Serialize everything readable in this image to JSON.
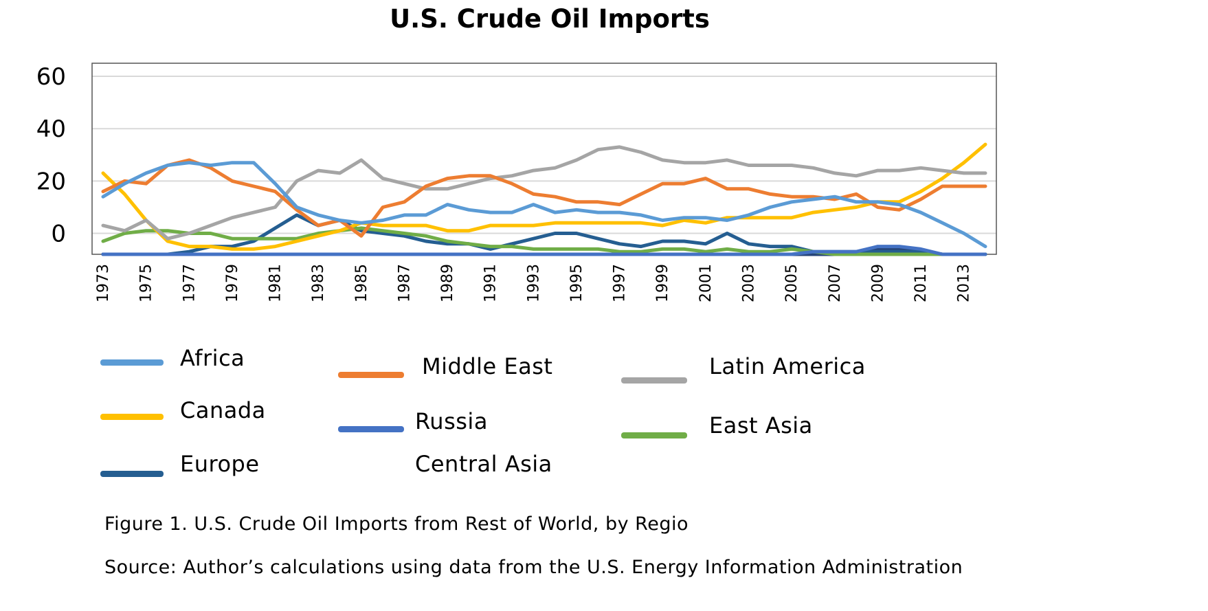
{
  "chart_data": {
    "type": "line",
    "title": "U.S. Crude Oil Imports",
    "xlabel": "",
    "ylabel": "",
    "ylim": [
      -8,
      65
    ],
    "yticks": [
      0,
      20,
      40,
      60
    ],
    "x": [
      1973,
      1974,
      1975,
      1976,
      1977,
      1978,
      1979,
      1980,
      1981,
      1982,
      1983,
      1984,
      1985,
      1986,
      1987,
      1988,
      1989,
      1990,
      1991,
      1992,
      1993,
      1994,
      1995,
      1996,
      1997,
      1998,
      1999,
      2000,
      2001,
      2002,
      2003,
      2004,
      2005,
      2006,
      2007,
      2008,
      2009,
      2010,
      2011,
      2012,
      2013,
      2014
    ],
    "xtick_labels": [
      "1973",
      "1975",
      "1977",
      "1979",
      "1981",
      "1983",
      "1985",
      "1987",
      "1989",
      "1991",
      "1993",
      "1995",
      "1997",
      "1999",
      "2001",
      "2003",
      "2005",
      "2007",
      "2009",
      "2011",
      "2013"
    ],
    "grid": true,
    "legend_position": "bottom",
    "series": [
      {
        "name": "Africa",
        "color": "#5B9BD5",
        "values": [
          14,
          19,
          23,
          26,
          27,
          26,
          27,
          27,
          19,
          10,
          7,
          5,
          4,
          5,
          7,
          7,
          11,
          9,
          8,
          8,
          11,
          8,
          9,
          8,
          8,
          7,
          5,
          6,
          6,
          5,
          7,
          10,
          12,
          13,
          14,
          12,
          12,
          11,
          8,
          4,
          0,
          -5
        ]
      },
      {
        "name": "Middle East",
        "color": "#ED7D31",
        "values": [
          16,
          20,
          19,
          26,
          28,
          25,
          20,
          18,
          16,
          9,
          3,
          5,
          -1,
          10,
          12,
          18,
          21,
          22,
          22,
          19,
          15,
          14,
          12,
          12,
          11,
          15,
          19,
          19,
          21,
          17,
          17,
          15,
          14,
          14,
          13,
          15,
          10,
          9,
          13,
          18,
          18,
          18
        ]
      },
      {
        "name": "Latin America",
        "color": "#A5A5A5",
        "values": [
          3,
          1,
          5,
          -2,
          0,
          3,
          6,
          8,
          10,
          20,
          24,
          23,
          28,
          21,
          19,
          17,
          17,
          19,
          21,
          22,
          24,
          25,
          28,
          32,
          33,
          31,
          28,
          27,
          27,
          28,
          26,
          26,
          26,
          25,
          23,
          22,
          24,
          24,
          25,
          24,
          23,
          23
        ]
      },
      {
        "name": "Canada",
        "color": "#FFC000",
        "values": [
          23,
          15,
          5,
          -3,
          -5,
          -5,
          -6,
          -6,
          -5,
          -3,
          -1,
          1,
          4,
          3,
          3,
          3,
          1,
          1,
          3,
          3,
          3,
          4,
          4,
          4,
          4,
          4,
          3,
          5,
          4,
          6,
          6,
          6,
          6,
          8,
          9,
          10,
          12,
          12,
          16,
          21,
          27,
          34
        ]
      },
      {
        "name": "Russia",
        "color": "#4472C4",
        "values": [
          -8,
          -8,
          -8,
          -8,
          -8,
          -8,
          -8,
          -8,
          -8,
          -8,
          -8,
          -8,
          -8,
          -8,
          -8,
          -8,
          -8,
          -8,
          -8,
          -8,
          -8,
          -8,
          -8,
          -8,
          -8,
          -8,
          -8,
          -8,
          -8,
          -8,
          -8,
          -8,
          -8,
          -7,
          -7,
          -7,
          -5,
          -5,
          -6,
          -8,
          -8,
          -8
        ]
      },
      {
        "name": "East Asia",
        "color": "#70AD47",
        "values": [
          -3,
          0,
          1,
          1,
          0,
          0,
          -2,
          -2,
          -2,
          -2,
          0,
          1,
          2,
          1,
          0,
          -1,
          -3,
          -4,
          -5,
          -5,
          -6,
          -6,
          -6,
          -6,
          -7,
          -7,
          -6,
          -6,
          -7,
          -6,
          -7,
          -7,
          -6,
          -7,
          -8,
          -8,
          -8,
          -8,
          -8,
          -8,
          -8,
          -8
        ]
      },
      {
        "name": "Europe",
        "color": "#255E91",
        "values": [
          -8,
          -8,
          -8,
          -8,
          -7,
          -5,
          -5,
          -3,
          2,
          7,
          3,
          5,
          1,
          0,
          -1,
          -3,
          -4,
          -4,
          -6,
          -4,
          -2,
          0,
          0,
          -2,
          -4,
          -5,
          -3,
          -3,
          -4,
          0,
          -4,
          -5,
          -5,
          -7,
          -7,
          -7,
          -7,
          -7,
          -7,
          -8,
          -8,
          -8
        ]
      },
      {
        "name": "Central Asia",
        "color": "#264478",
        "values": [
          -8,
          -8,
          -8,
          -8,
          -8,
          -8,
          -8,
          -8,
          -8,
          -8,
          -8,
          -8,
          -8,
          -8,
          -8,
          -8,
          -8,
          -8,
          -8,
          -8,
          -8,
          -8,
          -8,
          -8,
          -8,
          -8,
          -8,
          -8,
          -8,
          -8,
          -8,
          -8,
          -8,
          -8,
          -8,
          -8,
          -6,
          -6,
          -7,
          -8,
          -8,
          -8
        ],
        "legend_swatch": false
      }
    ]
  },
  "notes": {
    "caption": "Figure 1. U.S. Crude Oil Imports from Rest of World, by Regio",
    "source": "Source:  Author’s calculations using data from the U.S. Energy Information Administration"
  }
}
